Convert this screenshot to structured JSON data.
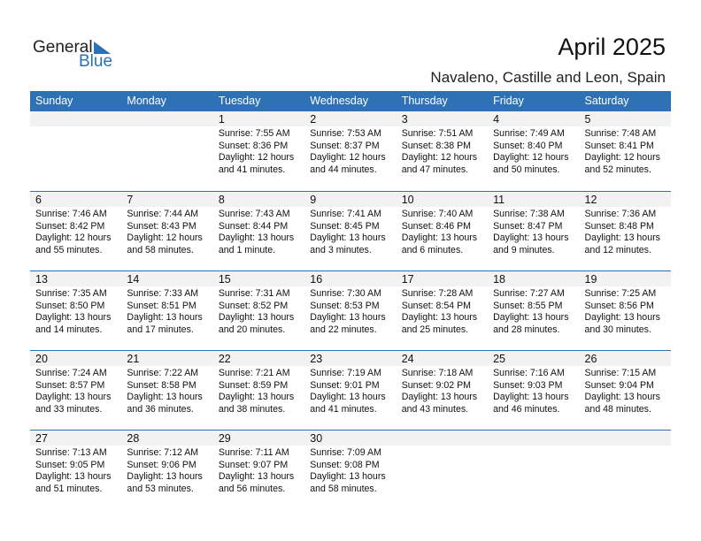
{
  "logo": {
    "general": "General",
    "blue": "Blue"
  },
  "title": "April 2025",
  "subtitle": "Navaleno, Castille and Leon, Spain",
  "weekdays": [
    "Sunday",
    "Monday",
    "Tuesday",
    "Wednesday",
    "Thursday",
    "Friday",
    "Saturday"
  ],
  "colors": {
    "header": "#2e71b4",
    "date_band": "#f2f2f2"
  },
  "weeks": [
    [
      null,
      null,
      {
        "day": "1",
        "sunrise": "Sunrise: 7:55 AM",
        "sunset": "Sunset: 8:36 PM",
        "daylight": "Daylight: 12 hours",
        "minutes": "and 41 minutes."
      },
      {
        "day": "2",
        "sunrise": "Sunrise: 7:53 AM",
        "sunset": "Sunset: 8:37 PM",
        "daylight": "Daylight: 12 hours",
        "minutes": "and 44 minutes."
      },
      {
        "day": "3",
        "sunrise": "Sunrise: 7:51 AM",
        "sunset": "Sunset: 8:38 PM",
        "daylight": "Daylight: 12 hours",
        "minutes": "and 47 minutes."
      },
      {
        "day": "4",
        "sunrise": "Sunrise: 7:49 AM",
        "sunset": "Sunset: 8:40 PM",
        "daylight": "Daylight: 12 hours",
        "minutes": "and 50 minutes."
      },
      {
        "day": "5",
        "sunrise": "Sunrise: 7:48 AM",
        "sunset": "Sunset: 8:41 PM",
        "daylight": "Daylight: 12 hours",
        "minutes": "and 52 minutes."
      }
    ],
    [
      {
        "day": "6",
        "sunrise": "Sunrise: 7:46 AM",
        "sunset": "Sunset: 8:42 PM",
        "daylight": "Daylight: 12 hours",
        "minutes": "and 55 minutes."
      },
      {
        "day": "7",
        "sunrise": "Sunrise: 7:44 AM",
        "sunset": "Sunset: 8:43 PM",
        "daylight": "Daylight: 12 hours",
        "minutes": "and 58 minutes."
      },
      {
        "day": "8",
        "sunrise": "Sunrise: 7:43 AM",
        "sunset": "Sunset: 8:44 PM",
        "daylight": "Daylight: 13 hours",
        "minutes": "and 1 minute."
      },
      {
        "day": "9",
        "sunrise": "Sunrise: 7:41 AM",
        "sunset": "Sunset: 8:45 PM",
        "daylight": "Daylight: 13 hours",
        "minutes": "and 3 minutes."
      },
      {
        "day": "10",
        "sunrise": "Sunrise: 7:40 AM",
        "sunset": "Sunset: 8:46 PM",
        "daylight": "Daylight: 13 hours",
        "minutes": "and 6 minutes."
      },
      {
        "day": "11",
        "sunrise": "Sunrise: 7:38 AM",
        "sunset": "Sunset: 8:47 PM",
        "daylight": "Daylight: 13 hours",
        "minutes": "and 9 minutes."
      },
      {
        "day": "12",
        "sunrise": "Sunrise: 7:36 AM",
        "sunset": "Sunset: 8:48 PM",
        "daylight": "Daylight: 13 hours",
        "minutes": "and 12 minutes."
      }
    ],
    [
      {
        "day": "13",
        "sunrise": "Sunrise: 7:35 AM",
        "sunset": "Sunset: 8:50 PM",
        "daylight": "Daylight: 13 hours",
        "minutes": "and 14 minutes."
      },
      {
        "day": "14",
        "sunrise": "Sunrise: 7:33 AM",
        "sunset": "Sunset: 8:51 PM",
        "daylight": "Daylight: 13 hours",
        "minutes": "and 17 minutes."
      },
      {
        "day": "15",
        "sunrise": "Sunrise: 7:31 AM",
        "sunset": "Sunset: 8:52 PM",
        "daylight": "Daylight: 13 hours",
        "minutes": "and 20 minutes."
      },
      {
        "day": "16",
        "sunrise": "Sunrise: 7:30 AM",
        "sunset": "Sunset: 8:53 PM",
        "daylight": "Daylight: 13 hours",
        "minutes": "and 22 minutes."
      },
      {
        "day": "17",
        "sunrise": "Sunrise: 7:28 AM",
        "sunset": "Sunset: 8:54 PM",
        "daylight": "Daylight: 13 hours",
        "minutes": "and 25 minutes."
      },
      {
        "day": "18",
        "sunrise": "Sunrise: 7:27 AM",
        "sunset": "Sunset: 8:55 PM",
        "daylight": "Daylight: 13 hours",
        "minutes": "and 28 minutes."
      },
      {
        "day": "19",
        "sunrise": "Sunrise: 7:25 AM",
        "sunset": "Sunset: 8:56 PM",
        "daylight": "Daylight: 13 hours",
        "minutes": "and 30 minutes."
      }
    ],
    [
      {
        "day": "20",
        "sunrise": "Sunrise: 7:24 AM",
        "sunset": "Sunset: 8:57 PM",
        "daylight": "Daylight: 13 hours",
        "minutes": "and 33 minutes."
      },
      {
        "day": "21",
        "sunrise": "Sunrise: 7:22 AM",
        "sunset": "Sunset: 8:58 PM",
        "daylight": "Daylight: 13 hours",
        "minutes": "and 36 minutes."
      },
      {
        "day": "22",
        "sunrise": "Sunrise: 7:21 AM",
        "sunset": "Sunset: 8:59 PM",
        "daylight": "Daylight: 13 hours",
        "minutes": "and 38 minutes."
      },
      {
        "day": "23",
        "sunrise": "Sunrise: 7:19 AM",
        "sunset": "Sunset: 9:01 PM",
        "daylight": "Daylight: 13 hours",
        "minutes": "and 41 minutes."
      },
      {
        "day": "24",
        "sunrise": "Sunrise: 7:18 AM",
        "sunset": "Sunset: 9:02 PM",
        "daylight": "Daylight: 13 hours",
        "minutes": "and 43 minutes."
      },
      {
        "day": "25",
        "sunrise": "Sunrise: 7:16 AM",
        "sunset": "Sunset: 9:03 PM",
        "daylight": "Daylight: 13 hours",
        "minutes": "and 46 minutes."
      },
      {
        "day": "26",
        "sunrise": "Sunrise: 7:15 AM",
        "sunset": "Sunset: 9:04 PM",
        "daylight": "Daylight: 13 hours",
        "minutes": "and 48 minutes."
      }
    ],
    [
      {
        "day": "27",
        "sunrise": "Sunrise: 7:13 AM",
        "sunset": "Sunset: 9:05 PM",
        "daylight": "Daylight: 13 hours",
        "minutes": "and 51 minutes."
      },
      {
        "day": "28",
        "sunrise": "Sunrise: 7:12 AM",
        "sunset": "Sunset: 9:06 PM",
        "daylight": "Daylight: 13 hours",
        "minutes": "and 53 minutes."
      },
      {
        "day": "29",
        "sunrise": "Sunrise: 7:11 AM",
        "sunset": "Sunset: 9:07 PM",
        "daylight": "Daylight: 13 hours",
        "minutes": "and 56 minutes."
      },
      {
        "day": "30",
        "sunrise": "Sunrise: 7:09 AM",
        "sunset": "Sunset: 9:08 PM",
        "daylight": "Daylight: 13 hours",
        "minutes": "and 58 minutes."
      },
      null,
      null,
      null
    ]
  ]
}
